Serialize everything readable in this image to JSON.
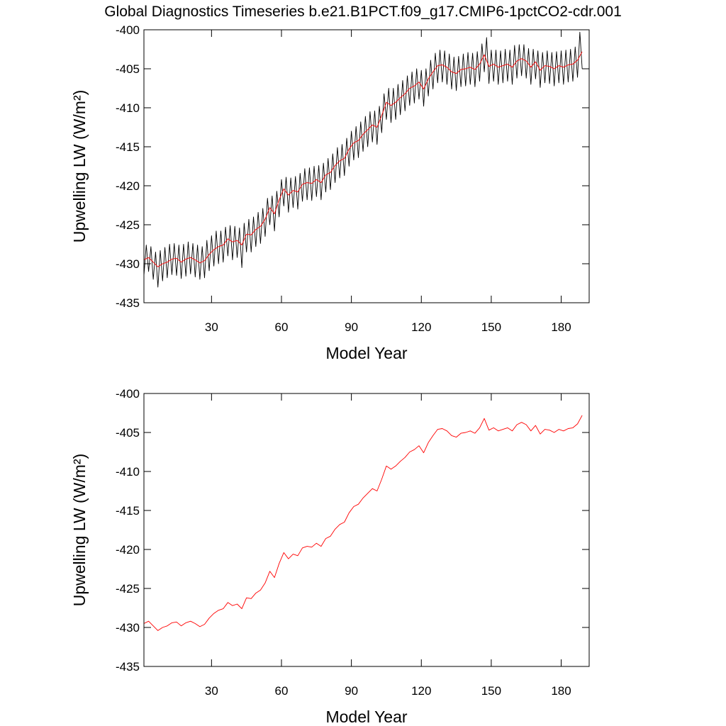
{
  "chart_data": [
    {
      "type": "line",
      "title": "Global Diagnostics Timeseries b.e21.B1PCT.f09_g17.CMIP6-1pctCO2-cdr.001",
      "x_label": "Model Year",
      "y_label": "Upwelling LW (W/m²)",
      "xlim": [
        1,
        192
      ],
      "ylim": [
        -435,
        -400
      ],
      "xticks": [
        30,
        60,
        90,
        120,
        150,
        180
      ],
      "yticks": [
        -435,
        -430,
        -425,
        -420,
        -415,
        -410,
        -405,
        -400
      ],
      "series": [
        {
          "color": "#000000",
          "x": [
            1,
            2,
            3,
            4,
            5,
            6,
            7,
            8,
            9,
            10,
            11,
            12,
            13,
            14,
            15,
            16,
            17,
            18,
            19,
            20,
            21,
            22,
            23,
            24,
            25,
            26,
            27,
            28,
            29,
            30,
            31,
            32,
            33,
            34,
            35,
            36,
            37,
            38,
            39,
            40,
            41,
            42,
            43,
            44,
            45,
            46,
            47,
            48,
            49,
            50,
            51,
            52,
            53,
            54,
            55,
            56,
            57,
            58,
            59,
            60,
            61,
            62,
            63,
            64,
            65,
            66,
            67,
            68,
            69,
            70,
            71,
            72,
            73,
            74,
            75,
            76,
            77,
            78,
            79,
            80,
            81,
            82,
            83,
            84,
            85,
            86,
            87,
            88,
            89,
            90,
            91,
            92,
            93,
            94,
            95,
            96,
            97,
            98,
            99,
            100,
            101,
            102,
            103,
            104,
            105,
            106,
            107,
            108,
            109,
            110,
            111,
            112,
            113,
            114,
            115,
            116,
            117,
            118,
            119,
            120,
            121,
            122,
            123,
            124,
            125,
            126,
            127,
            128,
            129,
            130,
            131,
            132,
            133,
            134,
            135,
            136,
            137,
            138,
            139,
            140,
            141,
            142,
            143,
            144,
            145,
            146,
            147,
            148,
            149,
            150,
            151,
            152,
            153,
            154,
            155,
            156,
            157,
            158,
            159,
            160,
            161,
            162,
            163,
            164,
            165,
            166,
            167,
            168,
            169,
            170,
            171,
            172,
            173,
            174,
            175,
            176,
            177,
            178,
            179,
            180,
            181,
            182,
            183,
            184,
            185,
            186,
            187,
            188,
            189
          ],
          "values": [
            -431.5,
            -427.6,
            -431.0,
            -427.8,
            -432.0,
            -428.5,
            -433.0,
            -428.3,
            -432.2,
            -427.9,
            -431.8,
            -427.5,
            -431.4,
            -427.4,
            -431.5,
            -427.6,
            -431.9,
            -427.5,
            -431.6,
            -427.2,
            -431.3,
            -427.4,
            -431.7,
            -427.6,
            -432.0,
            -427.8,
            -431.8,
            -427.0,
            -430.9,
            -426.4,
            -430.3,
            -425.8,
            -430.0,
            -425.8,
            -429.8,
            -425.3,
            -429.0,
            -425.1,
            -429.5,
            -425.2,
            -429.2,
            -425.4,
            -430.5,
            -424.8,
            -428.5,
            -424.3,
            -428.5,
            -424.0,
            -427.8,
            -423.4,
            -427.4,
            -422.9,
            -426.5,
            -421.6,
            -425.0,
            -421.3,
            -425.8,
            -420.7,
            -424.0,
            -419.2,
            -422.6,
            -418.9,
            -423.4,
            -419.0,
            -422.8,
            -418.8,
            -423.0,
            -418.4,
            -422.0,
            -417.8,
            -421.8,
            -417.7,
            -421.9,
            -417.5,
            -421.4,
            -417.4,
            -421.8,
            -417.1,
            -420.8,
            -416.5,
            -420.5,
            -415.9,
            -419.6,
            -415.1,
            -419.0,
            -414.7,
            -418.7,
            -413.9,
            -417.5,
            -413.0,
            -416.7,
            -412.4,
            -416.4,
            -411.8,
            -415.6,
            -411.1,
            -415.0,
            -410.5,
            -414.4,
            -410.4,
            -414.7,
            -409.8,
            -413.2,
            -408.2,
            -411.5,
            -407.5,
            -411.9,
            -407.5,
            -411.5,
            -407.0,
            -410.9,
            -406.5,
            -410.4,
            -405.9,
            -409.7,
            -405.4,
            -409.4,
            -405.0,
            -408.9,
            -405.2,
            -409.8,
            -405.0,
            -408.5,
            -403.9,
            -407.6,
            -403.0,
            -406.8,
            -402.6,
            -406.7,
            -402.7,
            -407.0,
            -403.1,
            -407.6,
            -403.5,
            -407.8,
            -403.4,
            -407.3,
            -403.1,
            -407.2,
            -402.9,
            -407.0,
            -403.0,
            -407.3,
            -402.8,
            -406.6,
            -401.8,
            -405.4,
            -401.0,
            -406.9,
            -402.6,
            -406.6,
            -402.6,
            -407.0,
            -402.7,
            -406.8,
            -402.5,
            -406.6,
            -402.6,
            -407.0,
            -402.0,
            -406.2,
            -401.9,
            -405.9,
            -401.9,
            -406.2,
            -402.4,
            -407.0,
            -402.5,
            -406.3,
            -402.7,
            -407.4,
            -402.9,
            -406.8,
            -402.7,
            -406.9,
            -402.9,
            -407.2,
            -402.8,
            -406.8,
            -402.7,
            -407.0,
            -402.6,
            -406.7,
            -402.5,
            -406.6,
            -402.2,
            -406.1,
            -400.3,
            -405.0
          ]
        },
        {
          "color": "#ff0000",
          "x": [
            1,
            3,
            5,
            7,
            9,
            11,
            13,
            15,
            17,
            19,
            21,
            23,
            25,
            27,
            29,
            31,
            33,
            35,
            37,
            39,
            41,
            43,
            45,
            47,
            49,
            51,
            53,
            55,
            57,
            59,
            61,
            63,
            65,
            67,
            69,
            71,
            73,
            75,
            77,
            79,
            81,
            83,
            85,
            87,
            89,
            91,
            93,
            95,
            97,
            99,
            101,
            103,
            105,
            107,
            109,
            111,
            113,
            115,
            117,
            119,
            121,
            123,
            125,
            127,
            129,
            131,
            133,
            135,
            137,
            139,
            141,
            143,
            145,
            147,
            149,
            151,
            153,
            155,
            157,
            159,
            161,
            163,
            165,
            167,
            169,
            171,
            173,
            175,
            177,
            179,
            181,
            183,
            185,
            187,
            189
          ],
          "values": [
            -429.5,
            -429.2,
            -429.8,
            -430.4,
            -430.0,
            -429.8,
            -429.4,
            -429.3,
            -429.8,
            -429.4,
            -429.2,
            -429.5,
            -429.9,
            -429.6,
            -428.8,
            -428.2,
            -427.8,
            -427.6,
            -426.8,
            -427.2,
            -427.0,
            -427.6,
            -426.2,
            -426.3,
            -425.6,
            -425.2,
            -424.3,
            -422.8,
            -423.6,
            -421.8,
            -420.4,
            -421.2,
            -420.6,
            -420.8,
            -419.8,
            -419.6,
            -419.7,
            -419.2,
            -419.6,
            -418.6,
            -418.3,
            -417.4,
            -416.8,
            -416.5,
            -415.3,
            -414.5,
            -414.2,
            -413.4,
            -412.8,
            -412.2,
            -412.5,
            -411.0,
            -409.3,
            -409.7,
            -409.3,
            -408.7,
            -408.2,
            -407.5,
            -407.2,
            -406.7,
            -407.6,
            -406.3,
            -405.4,
            -404.6,
            -404.5,
            -404.8,
            -405.4,
            -405.6,
            -405.1,
            -405.0,
            -404.8,
            -405.1,
            -404.4,
            -403.2,
            -404.7,
            -404.4,
            -404.8,
            -404.6,
            -404.4,
            -404.8,
            -404.0,
            -403.7,
            -404.0,
            -404.8,
            -404.1,
            -405.2,
            -404.6,
            -404.7,
            -405.0,
            -404.6,
            -404.8,
            -404.5,
            -404.4,
            -403.9,
            -402.8
          ]
        }
      ]
    },
    {
      "type": "line",
      "x_label": "Model Year",
      "y_label": "Upwelling LW (W/m²)",
      "xlim": [
        1,
        192
      ],
      "ylim": [
        -435,
        -400
      ],
      "xticks": [
        30,
        60,
        90,
        120,
        150,
        180
      ],
      "yticks": [
        -435,
        -430,
        -425,
        -420,
        -415,
        -410,
        -405,
        -400
      ],
      "series": [
        {
          "color": "#ff0000",
          "x": [
            1,
            3,
            5,
            7,
            9,
            11,
            13,
            15,
            17,
            19,
            21,
            23,
            25,
            27,
            29,
            31,
            33,
            35,
            37,
            39,
            41,
            43,
            45,
            47,
            49,
            51,
            53,
            55,
            57,
            59,
            61,
            63,
            65,
            67,
            69,
            71,
            73,
            75,
            77,
            79,
            81,
            83,
            85,
            87,
            89,
            91,
            93,
            95,
            97,
            99,
            101,
            103,
            105,
            107,
            109,
            111,
            113,
            115,
            117,
            119,
            121,
            123,
            125,
            127,
            129,
            131,
            133,
            135,
            137,
            139,
            141,
            143,
            145,
            147,
            149,
            151,
            153,
            155,
            157,
            159,
            161,
            163,
            165,
            167,
            169,
            171,
            173,
            175,
            177,
            179,
            181,
            183,
            185,
            187,
            189
          ],
          "values": [
            -429.5,
            -429.2,
            -429.8,
            -430.4,
            -430.0,
            -429.8,
            -429.4,
            -429.3,
            -429.8,
            -429.4,
            -429.2,
            -429.5,
            -429.9,
            -429.6,
            -428.8,
            -428.2,
            -427.8,
            -427.6,
            -426.8,
            -427.2,
            -427.0,
            -427.6,
            -426.2,
            -426.3,
            -425.6,
            -425.2,
            -424.3,
            -422.8,
            -423.6,
            -421.8,
            -420.4,
            -421.2,
            -420.6,
            -420.8,
            -419.8,
            -419.6,
            -419.7,
            -419.2,
            -419.6,
            -418.6,
            -418.3,
            -417.4,
            -416.8,
            -416.5,
            -415.3,
            -414.5,
            -414.2,
            -413.4,
            -412.8,
            -412.2,
            -412.5,
            -411.0,
            -409.3,
            -409.7,
            -409.3,
            -408.7,
            -408.2,
            -407.5,
            -407.2,
            -406.7,
            -407.6,
            -406.3,
            -405.4,
            -404.6,
            -404.5,
            -404.8,
            -405.4,
            -405.6,
            -405.1,
            -405.0,
            -404.8,
            -405.1,
            -404.4,
            -403.2,
            -404.7,
            -404.4,
            -404.8,
            -404.6,
            -404.4,
            -404.8,
            -404.0,
            -403.7,
            -404.0,
            -404.8,
            -404.1,
            -405.2,
            -404.6,
            -404.7,
            -405.0,
            -404.6,
            -404.8,
            -404.5,
            -404.4,
            -403.9,
            -402.8
          ]
        }
      ]
    }
  ]
}
